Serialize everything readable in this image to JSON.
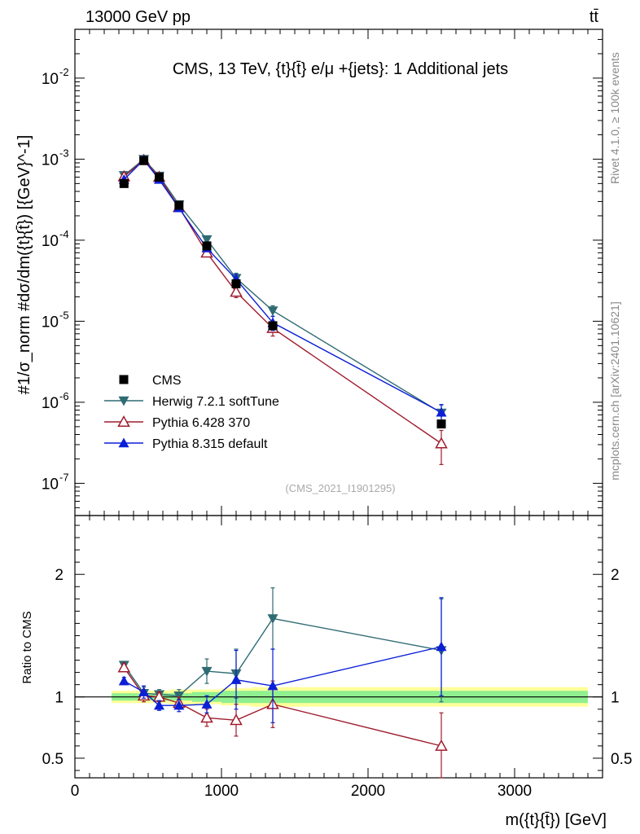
{
  "header": {
    "left": "13000 GeV pp",
    "right": "tt̄",
    "side_rivet": "Rivet 4.1.0, ≥ 100k events",
    "side_site": "mcplots.cern.ch [arXiv:2401.10621]"
  },
  "chart_data": [
    {
      "type": "line",
      "panel": "main",
      "title": "CMS, 13 TeV, {t}{t̄} e/μ +{jets}: 1 Additional jets",
      "watermark": "(CMS_2021_I1901295)",
      "ylabel": "#1/σ_norm #dσ/dm({t}{t̄}) [{GeV}^-1]",
      "yscale": "log",
      "ylim": [
        4e-08,
        0.04
      ],
      "xlim": [
        0,
        3600
      ],
      "y_tick_labels": [
        "10^-7",
        "10^-6",
        "10^-5",
        "10^-4",
        "10^-3",
        "10^-2"
      ],
      "x": [
        335,
        470,
        575,
        710,
        900,
        1100,
        1350,
        2500
      ],
      "series": [
        {
          "name": "CMS",
          "color": "#000000",
          "marker": "square",
          "values": [
            0.0005,
            0.00096,
            0.0006,
            0.00027,
            8.5e-05,
            2.9e-05,
            8.8e-06,
            5.4e-07
          ],
          "band": [
            0.04,
            0.04,
            0.04,
            0.04,
            0.05,
            0.06,
            0.08,
            0.08
          ]
        },
        {
          "name": "Herwig 7.2.1 softTune",
          "color": "#2f6b73",
          "marker": "triangle-down",
          "values": [
            0.00063,
            0.001,
            0.00062,
            0.000275,
            0.000102,
            3.4e-05,
            1.35e-05,
            7.4e-07
          ],
          "err": [
            0.03,
            0.03,
            0.03,
            0.04,
            0.08,
            0.15,
            0.15,
            0.25
          ]
        },
        {
          "name": "Pythia 6.428 370",
          "color": "#a01c2d",
          "marker": "triangle-open",
          "values": [
            0.00061,
            0.00097,
            0.0006,
            0.000255,
            7e-05,
            2.3e-05,
            8.2e-06,
            3.1e-07
          ],
          "err": [
            0.03,
            0.03,
            0.03,
            0.04,
            0.1,
            0.15,
            0.2,
            0.45
          ]
        },
        {
          "name": "Pythia 8.315 default",
          "color": "#0b1fd6",
          "marker": "triangle-up",
          "values": [
            0.00056,
            0.00098,
            0.00056,
            0.00025,
            8e-05,
            3.3e-05,
            9.6e-06,
            7.5e-07
          ],
          "err": [
            0.03,
            0.03,
            0.03,
            0.04,
            0.08,
            0.15,
            0.2,
            0.25
          ]
        }
      ]
    },
    {
      "type": "line",
      "panel": "ratio",
      "ylabel": "Ratio to CMS",
      "xlabel": "m({t}{t̄}) [GeV]",
      "ylim": [
        0.34,
        2.48
      ],
      "xlim": [
        0,
        3600
      ],
      "y_tick_labels": [
        "0.5",
        "1",
        "2"
      ],
      "x_tick_labels": [
        "0",
        "1000",
        "2000",
        "3000"
      ],
      "bands": {
        "bins": [
          [
            250,
            430
          ],
          [
            430,
            520
          ],
          [
            520,
            640
          ],
          [
            640,
            800
          ],
          [
            800,
            1000
          ],
          [
            1000,
            1200
          ],
          [
            1200,
            1500
          ],
          [
            1500,
            3500
          ]
        ],
        "inner": [
          0.03,
          0.03,
          0.03,
          0.03,
          0.04,
          0.05,
          0.05,
          0.05
        ],
        "outer": [
          0.05,
          0.05,
          0.05,
          0.06,
          0.06,
          0.07,
          0.08,
          0.08
        ],
        "inner_color": "#90f090",
        "outer_color": "#ffff99"
      },
      "x": [
        335,
        470,
        575,
        710,
        900,
        1100,
        1350,
        2500
      ],
      "series": [
        {
          "name": "Herwig 7.2.1 softTune",
          "color": "#2f6b73",
          "marker": "triangle-down",
          "values": [
            1.26,
            1.03,
            1.02,
            1.01,
            1.21,
            1.19,
            1.64,
            1.38
          ],
          "err": [
            0.03,
            0.05,
            0.04,
            0.05,
            0.1,
            0.2,
            0.25,
            0.42
          ]
        },
        {
          "name": "Pythia 6.428 370",
          "color": "#a01c2d",
          "marker": "triangle-open",
          "values": [
            1.24,
            1.01,
            1.0,
            0.95,
            0.83,
            0.81,
            0.94,
            0.6
          ],
          "err": [
            0.03,
            0.05,
            0.04,
            0.05,
            0.07,
            0.13,
            0.19,
            0.27
          ]
        },
        {
          "name": "Pythia 8.315 default",
          "color": "#0b1fd6",
          "marker": "triangle-up",
          "values": [
            1.13,
            1.04,
            0.93,
            0.93,
            0.94,
            1.14,
            1.09,
            1.41
          ],
          "err": [
            0.03,
            0.05,
            0.04,
            0.05,
            0.07,
            0.24,
            0.3,
            0.4
          ]
        }
      ]
    }
  ]
}
